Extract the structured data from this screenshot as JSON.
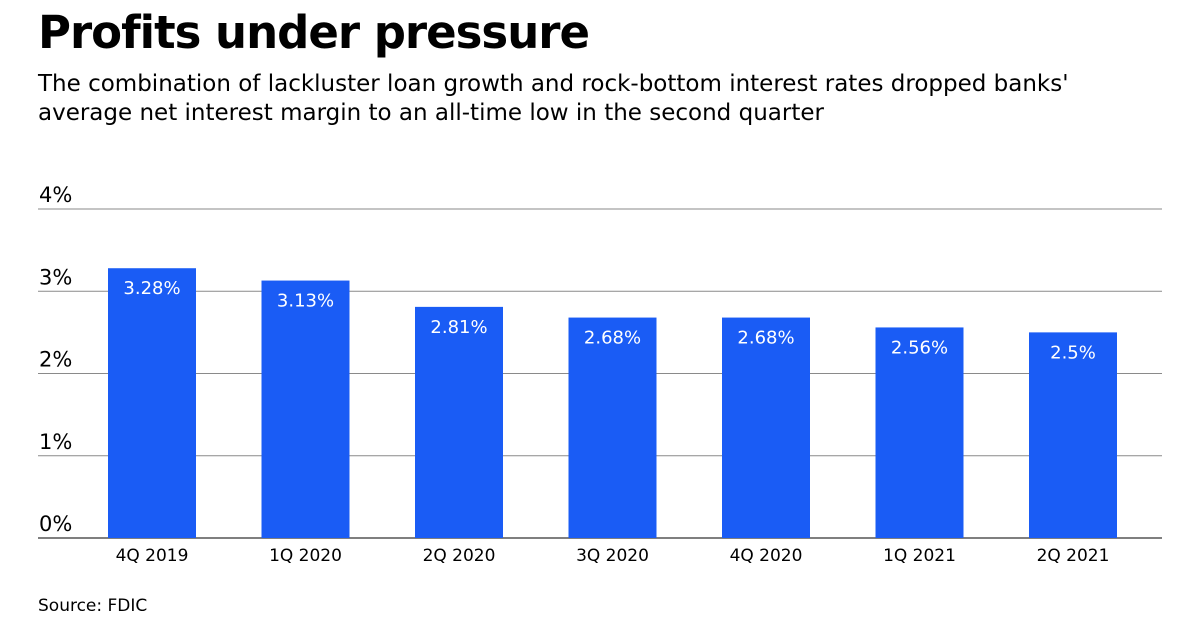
{
  "chart_data": {
    "type": "bar",
    "title": "Profits under pressure",
    "subtitle": "The combination of lackluster loan growth and rock-bottom interest rates dropped banks' average net interest margin to an all-time low in the second quarter",
    "categories": [
      "4Q 2019",
      "1Q 2020",
      "2Q 2020",
      "3Q 2020",
      "4Q 2020",
      "1Q 2021",
      "2Q 2021"
    ],
    "values": [
      3.28,
      3.13,
      2.81,
      2.68,
      2.68,
      2.56,
      2.5
    ],
    "data_labels": [
      "3.28%",
      "3.13%",
      "2.81%",
      "2.68%",
      "2.68%",
      "2.56%",
      "2.5%"
    ],
    "ylim": [
      0,
      4
    ],
    "yticks": [
      0,
      1,
      2,
      3,
      4
    ],
    "ytick_labels": [
      "0%",
      "1%",
      "2%",
      "3%",
      "4%"
    ],
    "grid": true,
    "bar_color": "#1a5cf5",
    "source": "Source: FDIC"
  }
}
